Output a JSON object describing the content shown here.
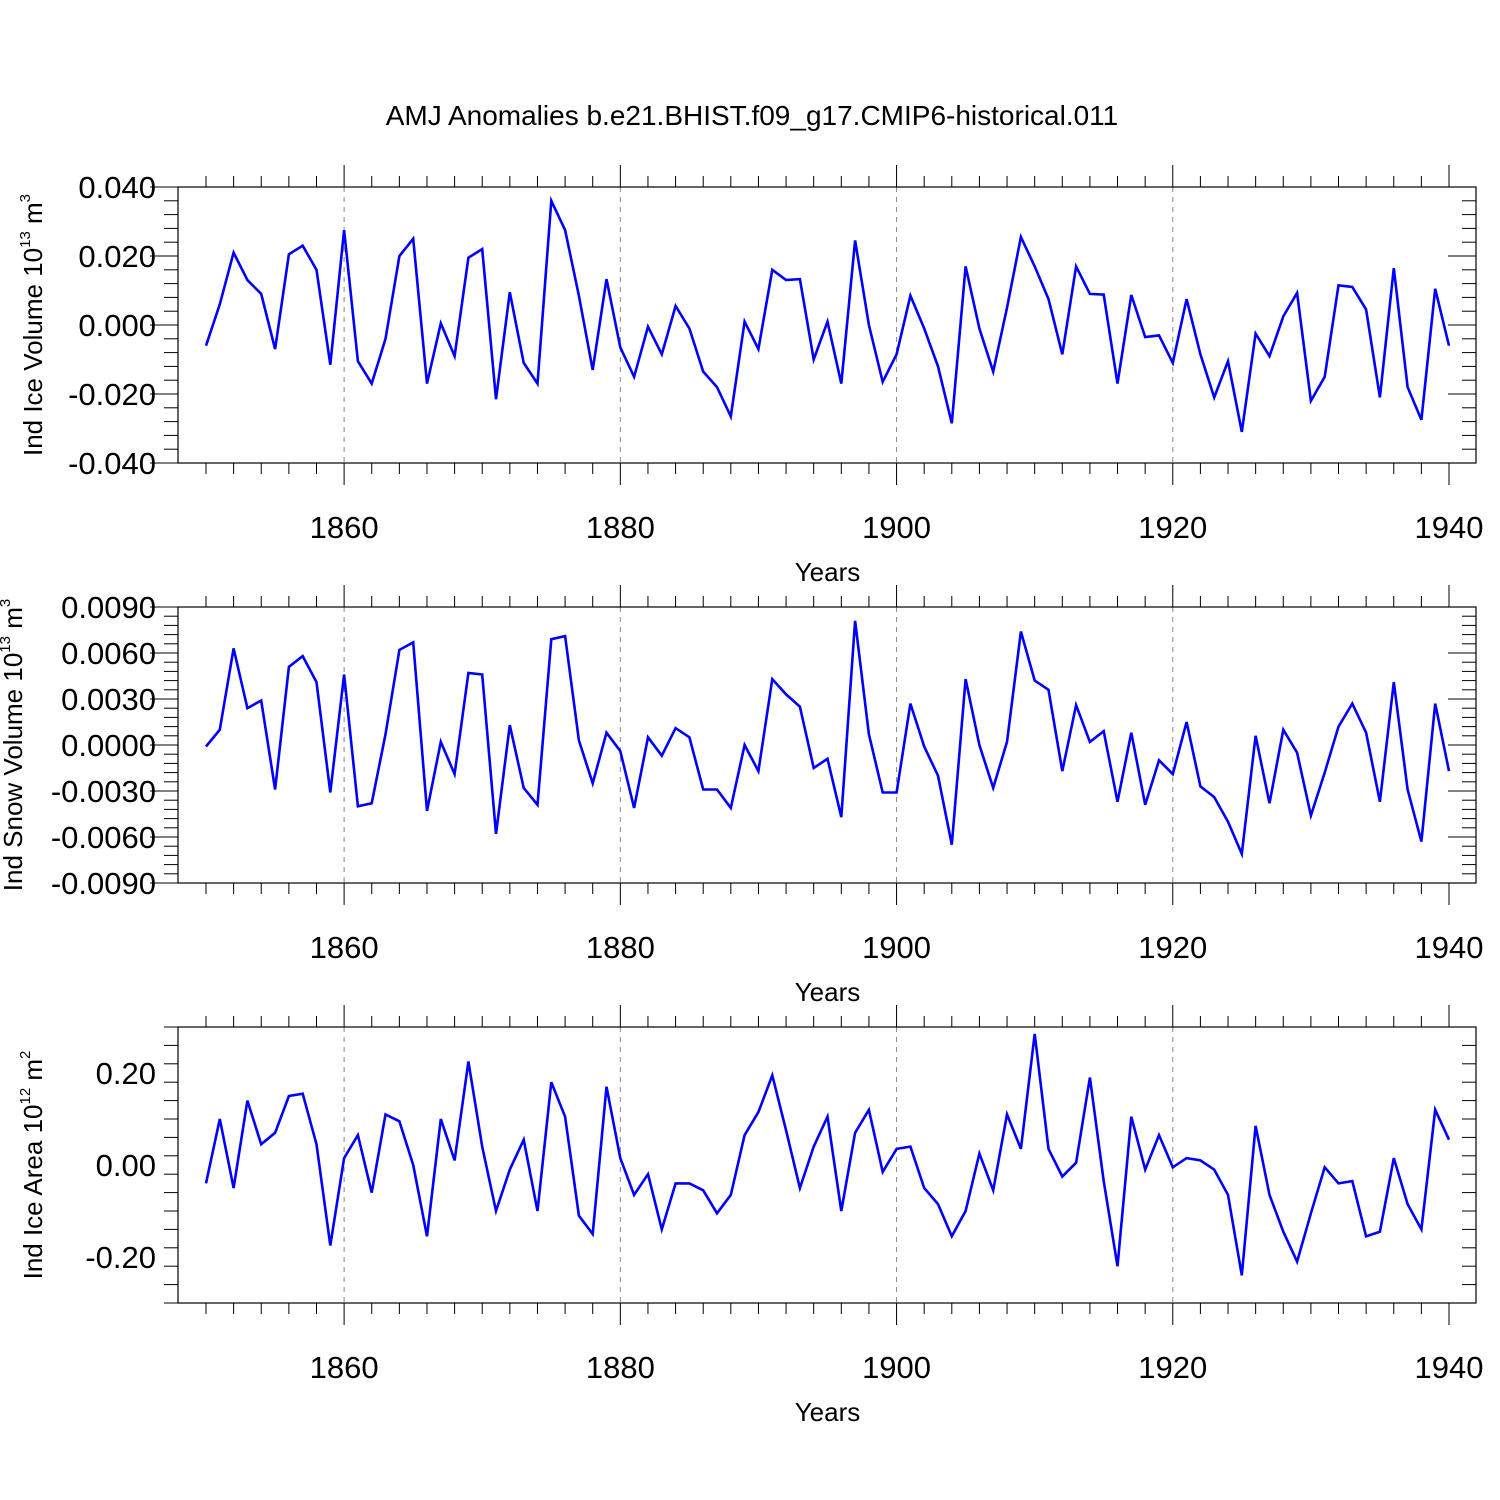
{
  "title": "AMJ Anomalies b.e21.BHIST.f09_g17.CMIP6-historical.011",
  "chart_data": [
    {
      "type": "line",
      "title": "AMJ Anomalies b.e21.BHIST.f09_g17.CMIP6-historical.011",
      "xlabel": "Years",
      "ylabel_main": "Ind Ice Volume 10",
      "ylabel_exp": "13",
      "ylabel_unit": " m",
      "ylabel_unit_exp": "3",
      "xlim": [
        1850,
        1940
      ],
      "ylim": [
        -0.04,
        0.04
      ],
      "xticks": [
        1860,
        1880,
        1900,
        1920,
        1940
      ],
      "xtick_labels": [
        "1860",
        "1880",
        "1900",
        "1920",
        "1940"
      ],
      "yticks": [
        -0.04,
        -0.02,
        0,
        0.02,
        0.04
      ],
      "ytick_labels": [
        "-0.040",
        "-0.020",
        "0.000",
        "0.020",
        "0.040"
      ],
      "color": "#0000ff",
      "x_start": 1850,
      "values": [
        -0.006,
        0.006,
        0.021,
        0.013,
        0.009,
        -0.007,
        0.0205,
        0.023,
        0.016,
        -0.0115,
        0.0275,
        -0.0105,
        -0.017,
        -0.004,
        0.02,
        0.025,
        -0.017,
        0.0005,
        -0.009,
        0.0195,
        0.022,
        -0.0215,
        0.0095,
        -0.011,
        -0.017,
        0.036,
        0.0275,
        0.0085,
        -0.013,
        0.0133,
        -0.0065,
        -0.015,
        -0.0005,
        -0.0085,
        0.0055,
        -0.001,
        -0.0135,
        -0.018,
        -0.0265,
        0.001,
        -0.007,
        0.016,
        0.013,
        0.0133,
        -0.01,
        0.001,
        -0.017,
        0.0245,
        0.0,
        -0.0165,
        -0.0085,
        0.0085,
        -0.001,
        -0.012,
        -0.0285,
        0.017,
        -0.001,
        -0.0135,
        0.005,
        0.0255,
        0.017,
        0.0075,
        -0.0085,
        0.017,
        0.009,
        0.0088,
        -0.017,
        0.0087,
        -0.0035,
        -0.003,
        -0.011,
        0.0075,
        -0.0085,
        -0.021,
        -0.0105,
        -0.031,
        -0.0025,
        -0.009,
        0.0025,
        0.0093,
        -0.022,
        -0.015,
        0.0115,
        0.011,
        0.0045,
        -0.021,
        0.0165,
        -0.018,
        -0.0275,
        0.0105,
        -0.006
      ]
    },
    {
      "type": "line",
      "xlabel": "Years",
      "ylabel_main": "Ind Snow Volume 10",
      "ylabel_exp": "13",
      "ylabel_unit": " m",
      "ylabel_unit_exp": "3",
      "xlim": [
        1850,
        1940
      ],
      "ylim": [
        -0.009,
        0.009
      ],
      "xticks": [
        1860,
        1880,
        1900,
        1920,
        1940
      ],
      "xtick_labels": [
        "1860",
        "1880",
        "1900",
        "1920",
        "1940"
      ],
      "yticks": [
        -0.009,
        -0.006,
        -0.003,
        0,
        0.003,
        0.006,
        0.009
      ],
      "ytick_labels": [
        "-0.0090",
        "-0.0060",
        "-0.0030",
        "0.0000",
        "0.0030",
        "0.0060",
        "0.0090"
      ],
      "color": "#0000ff",
      "x_start": 1850,
      "values": [
        -0.0001,
        0.001,
        0.0063,
        0.0024,
        0.0029,
        -0.0029,
        0.0051,
        0.0058,
        0.0041,
        -0.0031,
        0.0046,
        -0.004,
        -0.0038,
        0.0007,
        0.0062,
        0.0067,
        -0.0043,
        0.0002,
        -0.0019,
        0.0047,
        0.0046,
        -0.0058,
        0.0013,
        -0.0028,
        -0.0039,
        0.0069,
        0.0071,
        0.0003,
        -0.0025,
        0.0008,
        -0.0004,
        -0.0041,
        0.0005,
        -0.0007,
        0.0011,
        0.0005,
        -0.0029,
        -0.0029,
        -0.0041,
        0.0,
        -0.0017,
        0.0043,
        0.0033,
        0.0025,
        -0.0015,
        -0.0009,
        -0.0047,
        0.0081,
        0.0007,
        -0.0031,
        -0.0031,
        0.0027,
        -0.0001,
        -0.002,
        -0.0065,
        0.0043,
        0.0,
        -0.0028,
        0.0002,
        0.0074,
        0.0042,
        0.0036,
        -0.0017,
        0.0026,
        0.0002,
        0.0009,
        -0.0037,
        0.0008,
        -0.0039,
        -0.001,
        -0.0019,
        0.0015,
        -0.0027,
        -0.0034,
        -0.005,
        -0.0071,
        0.0006,
        -0.0038,
        0.001,
        -0.0005,
        -0.0046,
        -0.0018,
        0.0012,
        0.0027,
        0.0008,
        -0.0037,
        0.0041,
        -0.0029,
        -0.0063,
        0.0027,
        -0.0017
      ]
    },
    {
      "type": "line",
      "xlabel": "Years",
      "ylabel_main": "Ind Ice Area 10",
      "ylabel_exp": "12",
      "ylabel_unit": " m",
      "ylabel_unit_exp": "2",
      "xlim": [
        1850,
        1940
      ],
      "ylim": [
        -0.3,
        0.3
      ],
      "xticks": [
        1860,
        1880,
        1900,
        1920,
        1940
      ],
      "xtick_labels": [
        "1860",
        "1880",
        "1900",
        "1920",
        "1940"
      ],
      "yticks": [
        -0.2,
        0,
        0.2
      ],
      "ytick_labels": [
        "-0.20",
        "0.00",
        "0.20"
      ],
      "color": "#0000ff",
      "x_start": 1850,
      "values": [
        -0.04,
        0.1,
        -0.05,
        0.14,
        0.045,
        0.07,
        0.15,
        0.155,
        0.045,
        -0.175,
        0.015,
        0.065,
        -0.06,
        0.11,
        0.095,
        0.0,
        -0.155,
        0.1,
        0.01,
        0.225,
        0.04,
        -0.1,
        -0.01,
        0.055,
        -0.1,
        0.18,
        0.105,
        -0.11,
        -0.15,
        0.17,
        0.015,
        -0.065,
        -0.02,
        -0.14,
        -0.04,
        -0.04,
        -0.055,
        -0.105,
        -0.065,
        0.065,
        0.115,
        0.195,
        0.075,
        -0.05,
        0.04,
        0.105,
        -0.1,
        0.07,
        0.12,
        -0.015,
        0.035,
        0.04,
        -0.05,
        -0.085,
        -0.155,
        -0.1,
        0.025,
        -0.055,
        0.11,
        0.035,
        0.285,
        0.035,
        -0.025,
        0.005,
        0.19,
        -0.035,
        -0.22,
        0.105,
        -0.01,
        0.065,
        -0.005,
        0.015,
        0.01,
        -0.01,
        -0.065,
        -0.24,
        0.085,
        -0.065,
        -0.145,
        -0.21,
        -0.105,
        -0.005,
        -0.04,
        -0.035,
        -0.155,
        -0.145,
        0.015,
        -0.085,
        -0.14,
        0.12,
        0.055
      ]
    }
  ]
}
